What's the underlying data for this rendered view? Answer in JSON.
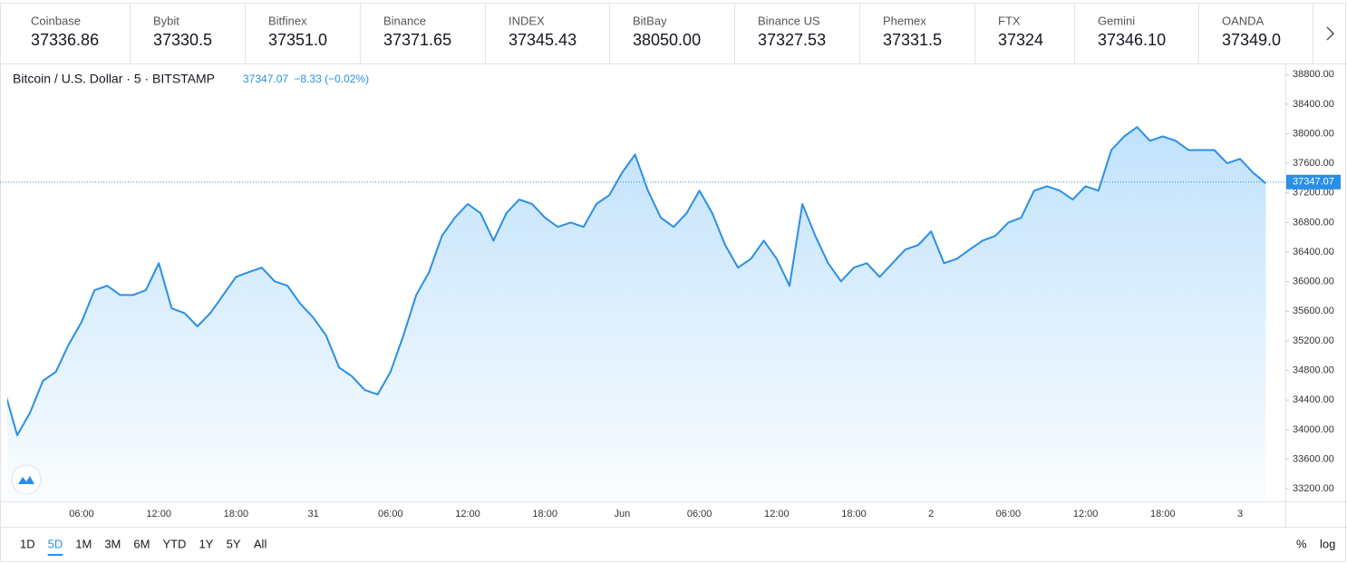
{
  "ticker": [
    {
      "name": "Coinbase",
      "price": "37336.86"
    },
    {
      "name": "Bybit",
      "price": "37330.5"
    },
    {
      "name": "Bitfinex",
      "price": "37351.0"
    },
    {
      "name": "Binance",
      "price": "37371.65"
    },
    {
      "name": "INDEX",
      "price": "37345.43"
    },
    {
      "name": "BitBay",
      "price": "38050.00"
    },
    {
      "name": "Binance US",
      "price": "37327.53"
    },
    {
      "name": "Phemex",
      "price": "37331.5"
    },
    {
      "name": "FTX",
      "price": "37324"
    },
    {
      "name": "Gemini",
      "price": "37346.10"
    },
    {
      "name": "OANDA",
      "price": "37349.0"
    }
  ],
  "range_buttons": [
    "1D",
    "5D",
    "1M",
    "3M",
    "6M",
    "YTD",
    "1Y",
    "5Y",
    "All"
  ],
  "scale_buttons": [
    "%",
    "log"
  ],
  "chart_data": {
    "type": "area",
    "title": "Bitcoin / U.S. Dollar · 5 · BITSTAMP",
    "last_price": 37347.07,
    "change_text": "−8.33 (−0.02%)",
    "categories": [
      null,
      null,
      null,
      null,
      null,
      null,
      "06:00",
      null,
      null,
      null,
      null,
      null,
      "12:00",
      null,
      null,
      null,
      null,
      null,
      "18:00",
      null,
      null,
      null,
      null,
      null,
      "31",
      null,
      null,
      null,
      null,
      null,
      "06:00",
      null,
      null,
      null,
      null,
      null,
      "12:00",
      null,
      null,
      null,
      null,
      null,
      "18:00",
      null,
      null,
      null,
      null,
      null,
      "Jun",
      null,
      null,
      null,
      null,
      null,
      "06:00",
      null,
      null,
      null,
      null,
      null,
      "12:00",
      null,
      null,
      null,
      null,
      null,
      "18:00",
      null,
      null,
      null,
      null,
      null,
      "2",
      null,
      null,
      null,
      null,
      null,
      "06:00",
      null,
      null,
      null,
      null,
      null,
      "12:00",
      null,
      null,
      null,
      null,
      null,
      "18:00",
      null,
      null,
      null,
      null,
      null,
      "3",
      null,
      null
    ],
    "series": [
      {
        "color": "#2a8fe6",
        "values": [
          34535,
          33925,
          34230,
          34660,
          34780,
          35150,
          35455,
          35885,
          35945,
          35820,
          35820,
          35885,
          36250,
          35640,
          35575,
          35395,
          35575,
          35820,
          36065,
          36130,
          36190,
          36005,
          35945,
          35700,
          35515,
          35270,
          34840,
          34720,
          34535,
          34475,
          34780,
          35270,
          35820,
          36130,
          36620,
          36865,
          37050,
          36925,
          36555,
          36925,
          37110,
          37050,
          36865,
          36740,
          36800,
          36740,
          37050,
          37170,
          37475,
          37720,
          37230,
          36865,
          36740,
          36925,
          37230,
          36925,
          36495,
          36190,
          36310,
          36555,
          36310,
          35945,
          37050,
          36620,
          36250,
          36005,
          36190,
          36250,
          36065,
          36250,
          36435,
          36495,
          36680,
          36250,
          36310,
          36435,
          36555,
          36620,
          36800,
          36865,
          37230,
          37290,
          37230,
          37110,
          37290,
          37230,
          37780,
          37965,
          38090,
          37905,
          37965,
          37905,
          37780,
          37780,
          37780,
          37600,
          37660,
          37475,
          37330
        ]
      }
    ],
    "ylim": [
      33030,
      38950
    ],
    "yticks": [
      {
        "value": 38800,
        "label": "38800.00"
      },
      {
        "value": 38400,
        "label": "38400.00"
      },
      {
        "value": 38000,
        "label": "38000.00"
      },
      {
        "value": 37600,
        "label": "37600.00"
      },
      {
        "value": 37200,
        "label": "37200.00"
      },
      {
        "value": 36800,
        "label": "36800.00"
      },
      {
        "value": 36400,
        "label": "36400.00"
      },
      {
        "value": 36000,
        "label": "36000.00"
      },
      {
        "value": 35600,
        "label": "35600.00"
      },
      {
        "value": 35200,
        "label": "35200.00"
      },
      {
        "value": 34800,
        "label": "34800.00"
      },
      {
        "value": 34400,
        "label": "34400.00"
      },
      {
        "value": 34000,
        "label": "34000.00"
      },
      {
        "value": 33600,
        "label": "33600.00"
      },
      {
        "value": 33200,
        "label": "33200.00"
      }
    ],
    "grid": false
  }
}
